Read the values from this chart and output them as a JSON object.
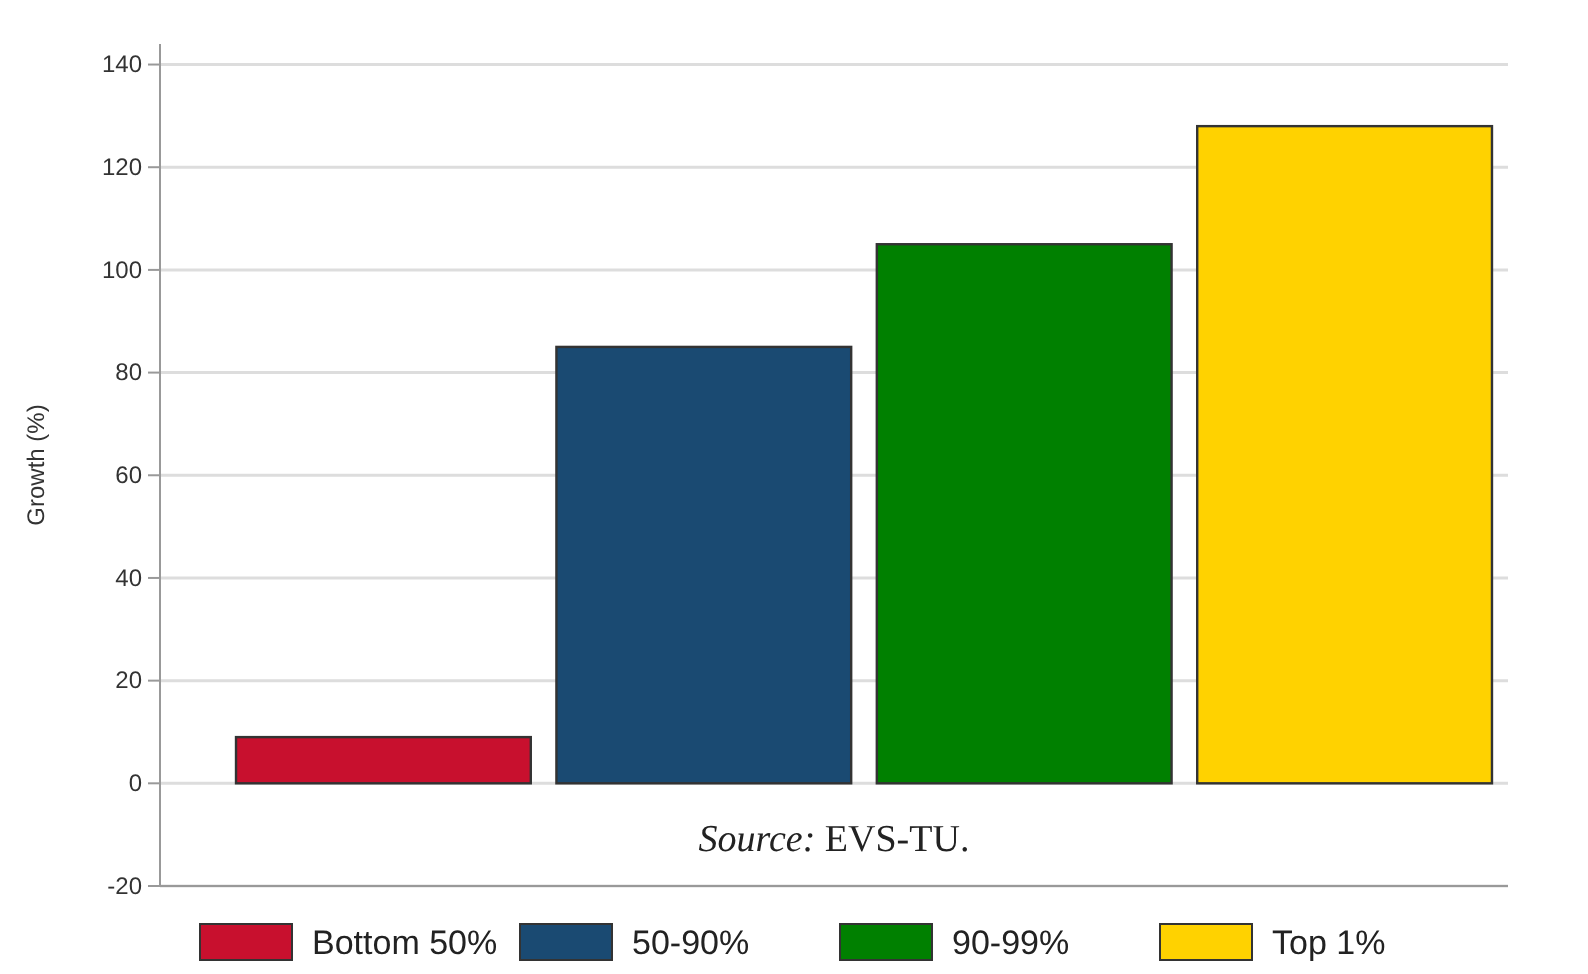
{
  "chart_data": {
    "type": "bar",
    "ylabel": "Growth (%)",
    "categories": [
      null,
      null,
      null,
      null
    ],
    "series": [
      {
        "name": "Bottom 50%",
        "color": "#c8102e",
        "values": [
          9,
          null,
          null,
          null
        ]
      },
      {
        "name": "50-90%",
        "color": "#1a4a72",
        "values": [
          null,
          85,
          null,
          null
        ]
      },
      {
        "name": "90-99%",
        "color": "#008000",
        "values": [
          null,
          null,
          105,
          null
        ]
      },
      {
        "name": "Top 1%",
        "color": "#ffd200",
        "values": [
          null,
          null,
          null,
          128
        ]
      }
    ],
    "ylim": [
      -20,
      144
    ],
    "yticks": [
      -20,
      0,
      20,
      40,
      60,
      80,
      100,
      120,
      140
    ],
    "grid": "y",
    "legend": "bottom",
    "annotations": [
      "Source: EVS-TU."
    ]
  }
}
